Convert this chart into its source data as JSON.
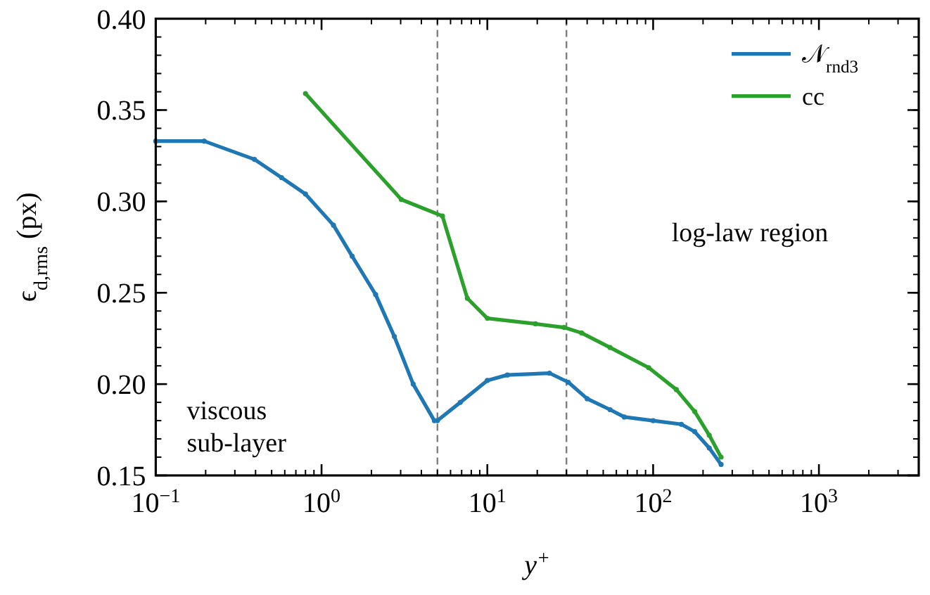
{
  "chart_data": {
    "type": "line",
    "xlabel": "y$^{+}$",
    "ylabel": "ϵ$_{d,rms}$ (px)",
    "log": "x",
    "xlim": [
      0.1,
      4000
    ],
    "ylim": [
      0.15,
      0.4
    ],
    "xticks": [
      {
        "value": 0.1,
        "label": "10$^{−1}$"
      },
      {
        "value": 1,
        "label": "10$^{0}$"
      },
      {
        "value": 10,
        "label": "10$^{1}$"
      },
      {
        "value": 100,
        "label": "10$^{2}$"
      },
      {
        "value": 1000,
        "label": "10$^{3}$"
      }
    ],
    "yticks": [
      {
        "value": 0.15,
        "label": "0.15"
      },
      {
        "value": 0.2,
        "label": "0.20"
      },
      {
        "value": 0.25,
        "label": "0.25"
      },
      {
        "value": 0.3,
        "label": "0.30"
      },
      {
        "value": 0.35,
        "label": "0.35"
      },
      {
        "value": 0.4,
        "label": "0.40"
      }
    ],
    "grid": false,
    "legend": "top right",
    "marker": "circle",
    "line_style": "solid",
    "series": [
      {
        "name": "𝒩$_{rnd3}$",
        "color": "#1f77b4",
        "x": [
          0.1,
          0.196,
          0.394,
          0.574,
          0.8,
          1.18,
          1.53,
          2.12,
          2.75,
          3.57,
          4.79,
          5,
          6.87,
          10,
          13.2,
          23.7,
          30.8,
          40,
          55,
          67,
          100,
          148,
          178,
          218,
          257
        ],
        "values": [
          0.333,
          0.333,
          0.323,
          0.313,
          0.304,
          0.287,
          0.27,
          0.249,
          0.226,
          0.2,
          0.18,
          0.18,
          0.19,
          0.202,
          0.205,
          0.206,
          0.201,
          0.192,
          0.186,
          0.182,
          0.18,
          0.178,
          0.174,
          0.165,
          0.156
        ]
      },
      {
        "name": "cc",
        "color": "#2ca02c",
        "x": [
          0.8,
          3.03,
          5.36,
          7.57,
          10,
          19.5,
          29,
          37,
          55,
          94,
          138,
          178,
          218,
          257
        ],
        "values": [
          0.359,
          0.301,
          0.292,
          0.247,
          0.236,
          0.233,
          0.231,
          0.228,
          0.22,
          0.209,
          0.197,
          0.185,
          0.172,
          0.16
        ]
      }
    ],
    "ref_lines": [
      {
        "axis": "x",
        "value": 5,
        "color": "#808080",
        "line_style": "dashed"
      },
      {
        "axis": "x",
        "value": 30,
        "color": "#808080",
        "line_style": "dashed"
      }
    ],
    "annotations": [
      "viscous\nsub-layer",
      "log-law region"
    ]
  }
}
